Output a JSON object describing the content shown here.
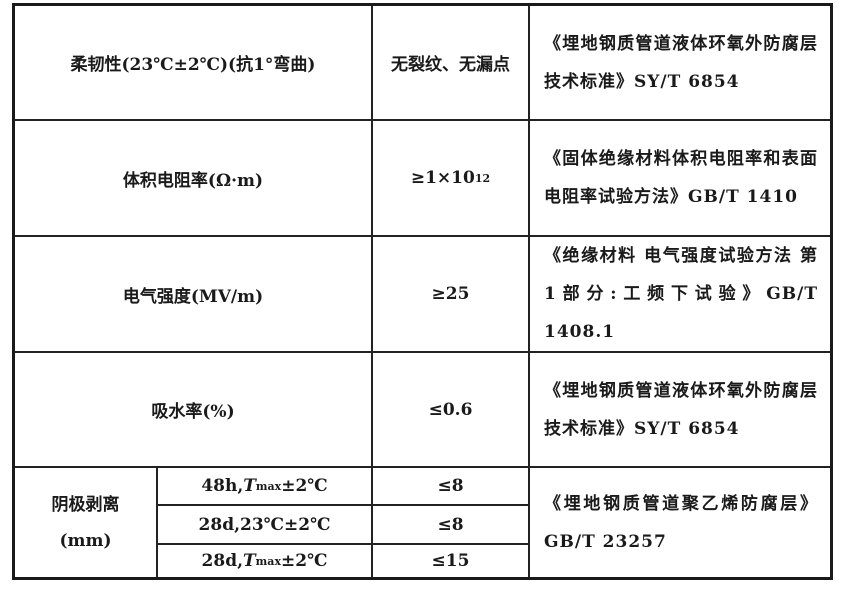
{
  "rows": [
    {
      "property": "柔韧性(23℃±2℃)(抗1°弯曲)",
      "value": "无裂纹、无漏点",
      "standard": "《埋地钢质管道液体环氧外防腐层技术标准》SY/T 6854"
    },
    {
      "property": "体积电阻率(Ω·m)",
      "value": "≥1×10",
      "value_exp": "12",
      "standard": "《固体绝缘材料体积电阻率和表面电阻率试验方法》GB/T 1410"
    },
    {
      "property": "电气强度(MV/m)",
      "value": "≥25",
      "standard": "《绝缘材料 电气强度试验方法 第1部分:工频下试验》GB/T 1408.1"
    },
    {
      "property": "吸水率(%)",
      "value": "≤0.6",
      "standard": "《埋地钢质管道液体环氧外防腐层技术标准》SY/T 6854"
    }
  ],
  "cathodic": {
    "property": "阴极剥离",
    "unit": "(mm)",
    "conditions": [
      {
        "pre": "48h,",
        "T": "T",
        "sub": "max",
        "post": "±2℃",
        "value": "≤8"
      },
      {
        "pre": "28d,23℃±2℃",
        "T": "",
        "sub": "",
        "post": "",
        "value": "≤8"
      },
      {
        "pre": "28d,",
        "T": "T",
        "sub": "max",
        "post": "±2℃",
        "value": "≤15"
      }
    ],
    "standard": "《埋地钢质管道聚乙烯防腐层》GB/T 23257"
  }
}
